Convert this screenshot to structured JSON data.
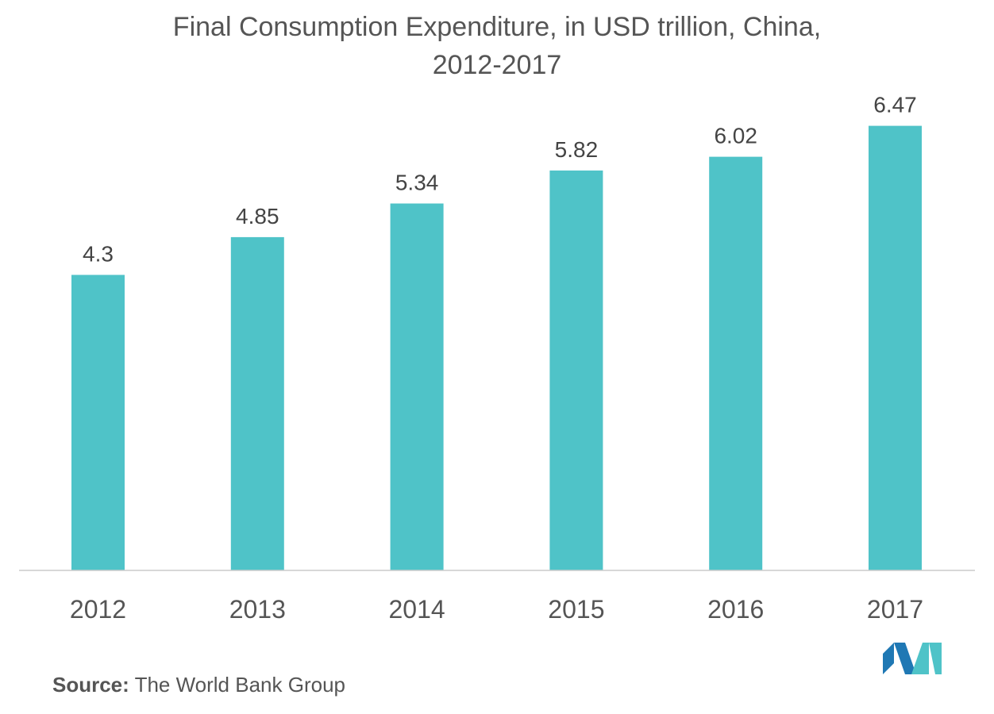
{
  "chart_data": {
    "type": "bar",
    "title_line1": "Final Consumption Expenditure, in USD trillion, China,",
    "title_line2": "2012-2017",
    "categories": [
      "2012",
      "2013",
      "2014",
      "2015",
      "2016",
      "2017"
    ],
    "values": [
      4.3,
      4.85,
      5.34,
      5.82,
      6.02,
      6.47
    ],
    "value_labels": [
      "4.3",
      "4.85",
      "5.34",
      "5.82",
      "6.02",
      "6.47"
    ],
    "xlabel": "",
    "ylabel": "",
    "ylim": [
      0,
      6.8
    ],
    "grid": false,
    "legend": "none",
    "bar_color": "#4fc3c8",
    "axis_color": "#cccccc",
    "label_color": "#444444"
  },
  "source": {
    "label": "Source:",
    "text": " The World Bank Group"
  },
  "logo": {
    "icon": "mordor-intelligence-logo-icon",
    "color_dark": "#1f78b4",
    "color_light": "#4fc3c8"
  }
}
